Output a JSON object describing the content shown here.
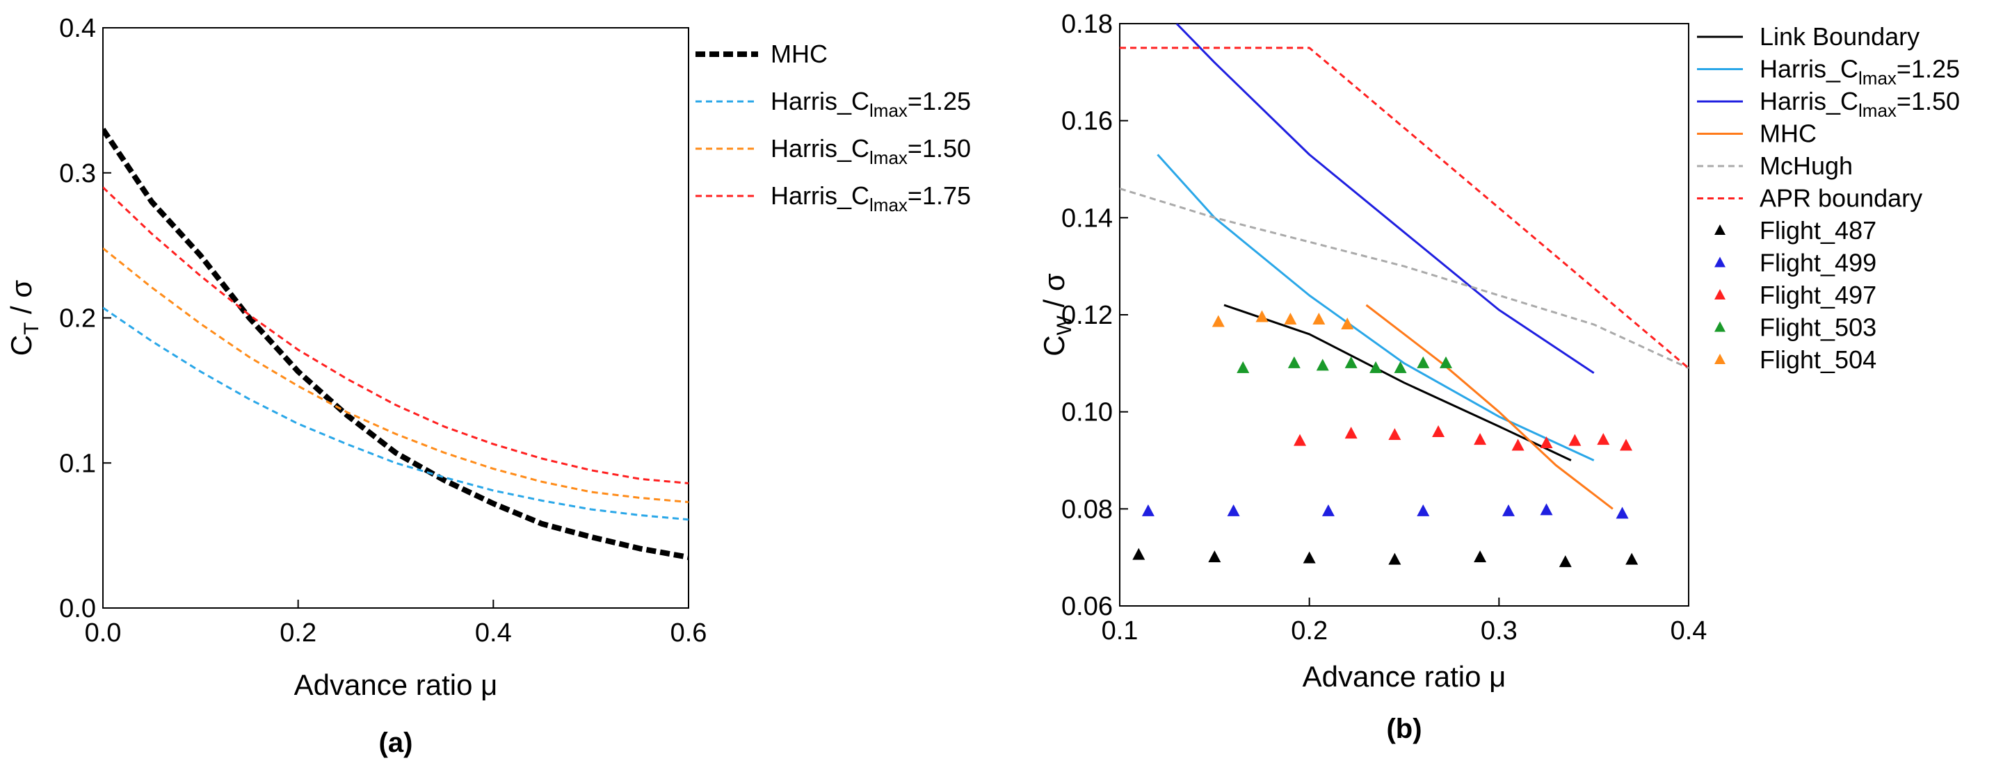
{
  "chart_data": [
    {
      "type": "line",
      "panel_label": "(a)",
      "xlabel": "Advance ratio μ",
      "ylabel": {
        "base": "C",
        "sub": "T",
        "rest": " / σ"
      },
      "xlim": [
        0.0,
        0.6
      ],
      "ylim": [
        0.0,
        0.4
      ],
      "xticks": [
        0.0,
        0.2,
        0.4,
        0.6
      ],
      "yticks": [
        0.0,
        0.1,
        0.2,
        0.3,
        0.4
      ],
      "xtick_labels": [
        "0.0",
        "0.2",
        "0.4",
        "0.6"
      ],
      "ytick_labels": [
        "0.0",
        "0.1",
        "0.2",
        "0.3",
        "0.4"
      ],
      "legend_position": "outside-right",
      "series": [
        {
          "name": "MHC",
          "label": {
            "pre": "MHC",
            "sub": "",
            "post": ""
          },
          "color": "#000000",
          "style": "thick-dash",
          "x": [
            0.0,
            0.02,
            0.05,
            0.1,
            0.15,
            0.2,
            0.25,
            0.3,
            0.35,
            0.4,
            0.45,
            0.5,
            0.55,
            0.6
          ],
          "y": [
            0.33,
            0.31,
            0.28,
            0.243,
            0.2,
            0.163,
            0.133,
            0.107,
            0.088,
            0.072,
            0.058,
            0.049,
            0.041,
            0.035
          ]
        },
        {
          "name": "Harris_Clmax=1.25",
          "label": {
            "pre": "Harris_C",
            "sub": "lmax",
            "post": "=1.25"
          },
          "color": "#2aa7e8",
          "style": "dash",
          "x": [
            0.0,
            0.05,
            0.1,
            0.15,
            0.2,
            0.25,
            0.3,
            0.35,
            0.4,
            0.45,
            0.5,
            0.55,
            0.6
          ],
          "y": [
            0.207,
            0.184,
            0.163,
            0.144,
            0.127,
            0.113,
            0.1,
            0.09,
            0.081,
            0.074,
            0.068,
            0.064,
            0.061
          ]
        },
        {
          "name": "Harris_Clmax=1.50",
          "label": {
            "pre": "Harris_C",
            "sub": "lmax",
            "post": "=1.50"
          },
          "color": "#ff8c1a",
          "style": "dash",
          "x": [
            0.0,
            0.05,
            0.1,
            0.15,
            0.2,
            0.25,
            0.3,
            0.35,
            0.4,
            0.45,
            0.5,
            0.55,
            0.6
          ],
          "y": [
            0.248,
            0.221,
            0.196,
            0.173,
            0.153,
            0.135,
            0.12,
            0.107,
            0.096,
            0.087,
            0.08,
            0.076,
            0.073
          ]
        },
        {
          "name": "Harris_Clmax=1.75",
          "label": {
            "pre": "Harris_C",
            "sub": "lmax",
            "post": "=1.75"
          },
          "color": "#ff2020",
          "style": "dash",
          "x": [
            0.0,
            0.05,
            0.1,
            0.15,
            0.2,
            0.25,
            0.3,
            0.35,
            0.4,
            0.45,
            0.5,
            0.55,
            0.6
          ],
          "y": [
            0.29,
            0.258,
            0.229,
            0.202,
            0.178,
            0.158,
            0.14,
            0.125,
            0.113,
            0.103,
            0.095,
            0.089,
            0.086
          ]
        }
      ]
    },
    {
      "type": "line",
      "panel_label": "(b)",
      "xlabel": "Advance ratio μ",
      "ylabel": {
        "base": "C",
        "sub": "W",
        "rest": " / σ"
      },
      "xlim": [
        0.1,
        0.4
      ],
      "ylim": [
        0.06,
        0.18
      ],
      "xticks": [
        0.1,
        0.2,
        0.3,
        0.4
      ],
      "yticks": [
        0.06,
        0.08,
        0.1,
        0.12,
        0.14,
        0.16,
        0.18
      ],
      "xtick_labels": [
        "0.1",
        "0.2",
        "0.3",
        "0.4"
      ],
      "ytick_labels": [
        "0.06",
        "0.08",
        "0.10",
        "0.12",
        "0.14",
        "0.16",
        "0.18"
      ],
      "legend_position": "outside-right",
      "series": [
        {
          "name": "Link Boundary",
          "label": {
            "pre": "Link Boundary",
            "sub": "",
            "post": ""
          },
          "color": "#000000",
          "style": "solid",
          "x": [
            0.155,
            0.2,
            0.25,
            0.3,
            0.338
          ],
          "y": [
            0.122,
            0.116,
            0.106,
            0.097,
            0.09
          ]
        },
        {
          "name": "Harris_Clmax=1.25",
          "label": {
            "pre": "Harris_C",
            "sub": "lmax",
            "post": "=1.25"
          },
          "color": "#2aa7e8",
          "style": "solid",
          "x": [
            0.12,
            0.15,
            0.2,
            0.25,
            0.3,
            0.35
          ],
          "y": [
            0.153,
            0.14,
            0.124,
            0.11,
            0.099,
            0.09
          ]
        },
        {
          "name": "Harris_Clmax=1.50",
          "label": {
            "pre": "Harris_C",
            "sub": "lmax",
            "post": "=1.50"
          },
          "color": "#1f1fe0",
          "style": "solid",
          "x": [
            0.13,
            0.15,
            0.2,
            0.25,
            0.3,
            0.35
          ],
          "y": [
            0.18,
            0.172,
            0.153,
            0.137,
            0.121,
            0.108
          ]
        },
        {
          "name": "MHC",
          "label": {
            "pre": "MHC",
            "sub": "",
            "post": ""
          },
          "color": "#ff7a1a",
          "style": "solid",
          "x": [
            0.23,
            0.27,
            0.3,
            0.33,
            0.36
          ],
          "y": [
            0.122,
            0.11,
            0.1,
            0.089,
            0.08
          ]
        },
        {
          "name": "McHugh",
          "label": {
            "pre": "McHugh",
            "sub": "",
            "post": ""
          },
          "color": "#aaaaaa",
          "style": "dash",
          "x": [
            0.1,
            0.15,
            0.2,
            0.25,
            0.3,
            0.35,
            0.4
          ],
          "y": [
            0.146,
            0.14,
            0.135,
            0.13,
            0.124,
            0.118,
            0.109
          ]
        },
        {
          "name": "APR boundary",
          "label": {
            "pre": "APR boundary",
            "sub": "",
            "post": ""
          },
          "color": "#ff2020",
          "style": "dash",
          "x": [
            0.1,
            0.2,
            0.4
          ],
          "y": [
            0.175,
            0.175,
            0.109
          ]
        },
        {
          "name": "Flight_487",
          "label": {
            "pre": "Flight_487",
            "sub": "",
            "post": ""
          },
          "color": "#000000",
          "style": "marker",
          "x": [
            0.11,
            0.15,
            0.2,
            0.245,
            0.29,
            0.335,
            0.37
          ],
          "y": [
            0.0705,
            0.07,
            0.0698,
            0.0695,
            0.07,
            0.069,
            0.0695
          ]
        },
        {
          "name": "Flight_499",
          "label": {
            "pre": "Flight_499",
            "sub": "",
            "post": ""
          },
          "color": "#1f1fe0",
          "style": "marker",
          "x": [
            0.115,
            0.16,
            0.21,
            0.26,
            0.305,
            0.325,
            0.365
          ],
          "y": [
            0.0795,
            0.0795,
            0.0795,
            0.0795,
            0.0795,
            0.0797,
            0.079
          ]
        },
        {
          "name": "Flight_497",
          "label": {
            "pre": "Flight_497",
            "sub": "",
            "post": ""
          },
          "color": "#ff2020",
          "style": "marker",
          "x": [
            0.195,
            0.222,
            0.245,
            0.268,
            0.29,
            0.31,
            0.325,
            0.34,
            0.355,
            0.367
          ],
          "y": [
            0.094,
            0.0955,
            0.0952,
            0.0958,
            0.0942,
            0.093,
            0.0935,
            0.094,
            0.0942,
            0.093
          ]
        },
        {
          "name": "Flight_503",
          "label": {
            "pre": "Flight_503",
            "sub": "",
            "post": ""
          },
          "color": "#1a9a2a",
          "style": "marker",
          "x": [
            0.165,
            0.192,
            0.207,
            0.222,
            0.235,
            0.248,
            0.26,
            0.272
          ],
          "y": [
            0.109,
            0.11,
            0.1095,
            0.11,
            0.109,
            0.109,
            0.11,
            0.11
          ]
        },
        {
          "name": "Flight_504",
          "label": {
            "pre": "Flight_504",
            "sub": "",
            "post": ""
          },
          "color": "#ff8c1a",
          "style": "marker",
          "x": [
            0.152,
            0.175,
            0.19,
            0.205,
            0.22
          ],
          "y": [
            0.1185,
            0.1195,
            0.119,
            0.119,
            0.118
          ]
        }
      ]
    }
  ]
}
